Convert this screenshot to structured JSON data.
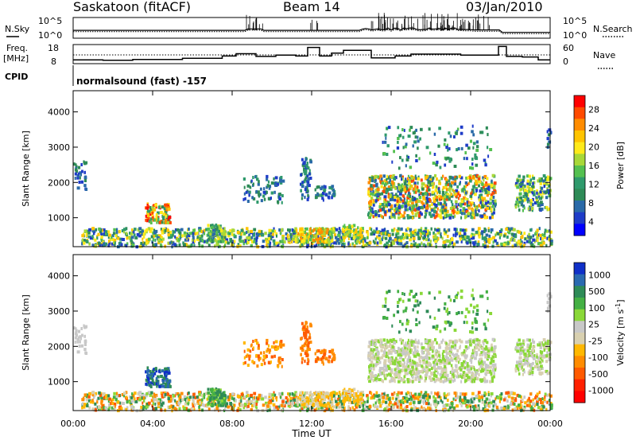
{
  "header": {
    "station": "Saskatoon (fitACF)",
    "beam": "Beam 14",
    "date": "03/Jan/2010"
  },
  "panel_labels": {
    "nsky": "N.Sky",
    "nsearch": "N.Search",
    "freq": "Freq.",
    "freq_unit": "[MHz]",
    "nave": "Nave",
    "cpid": "CPID",
    "cpid_value": "normalsound (fast) -157"
  },
  "noise_ticks": {
    "left_top": "10^5",
    "left_bottom": "10^0",
    "right_top": "10^5",
    "right_bottom": "10^0"
  },
  "freq_ticks": {
    "left_top": "18",
    "left_bottom": "8",
    "right_top": "60",
    "right_bottom": "0"
  },
  "chart_data": [
    {
      "type": "heatmap",
      "name": "power-panel",
      "ylabel": "Slant Range [km]",
      "ylim": [
        180,
        4600
      ],
      "yticks": [
        "1000",
        "2000",
        "3000",
        "4000"
      ],
      "xticks": [
        "00:00",
        "04:00",
        "08:00",
        "12:00",
        "16:00",
        "20:00",
        "00:00"
      ],
      "colorbar_label": "Power [dB]",
      "colorbar_ticks": [
        "28",
        "24",
        "20",
        "16",
        "12",
        "8",
        "4"
      ],
      "colors": [
        "#ff0000",
        "#ff4a00",
        "#ff8c00",
        "#ffc400",
        "#ffea1a",
        "#a8d838",
        "#54c050",
        "#2f9a6c",
        "#2e8b57",
        "#2a6aa8",
        "#1e3cc8",
        "#0000ff"
      ]
    },
    {
      "type": "heatmap",
      "name": "velocity-panel",
      "ylabel": "Slant Range [km]",
      "xlabel": "Time UT",
      "ylim": [
        180,
        4600
      ],
      "yticks": [
        "1000",
        "2000",
        "3000",
        "4000"
      ],
      "xticks": [
        "00:00",
        "04:00",
        "08:00",
        "12:00",
        "16:00",
        "20:00",
        "00:00"
      ],
      "colorbar_label": "Velocity [m s^-1]",
      "colorbar_ticks": [
        "1000",
        "500",
        "100",
        "25",
        "-25",
        "-100",
        "-500",
        "-1000"
      ],
      "colors": [
        "#1030c8",
        "#2a6ab0",
        "#2e8b57",
        "#44b044",
        "#8ad838",
        "#c8c8c8",
        "#d8d0b0",
        "#ffb800",
        "#ff8c00",
        "#ff5a00",
        "#ff2000",
        "#ff0000"
      ]
    }
  ]
}
